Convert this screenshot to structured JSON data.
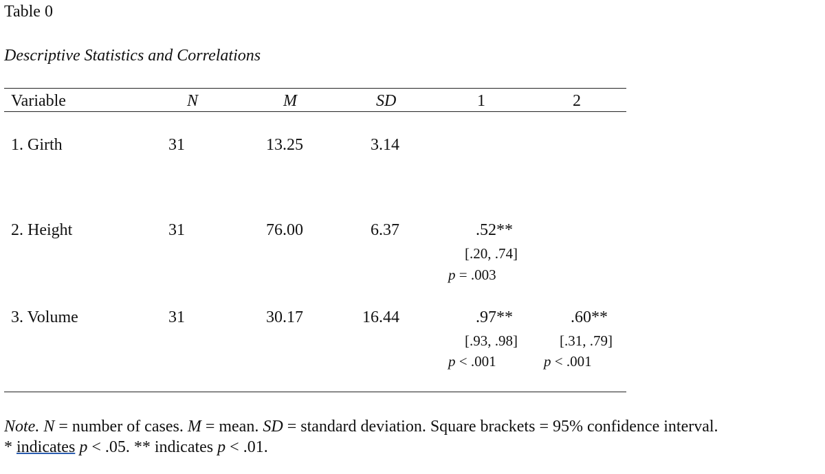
{
  "table": {
    "number": "Table 0",
    "title": "Descriptive Statistics and Correlations",
    "headers": {
      "variable": "Variable",
      "n": "N",
      "m": "M",
      "sd": "SD",
      "c1": "1",
      "c2": "2"
    },
    "rows": [
      {
        "variable": "1. Girth",
        "n": "31",
        "m": "13.25",
        "sd": "3.14"
      },
      {
        "variable": "2. Height",
        "n": "31",
        "m": "76.00",
        "sd": "6.37",
        "c1": {
          "r": ".52**",
          "ci": "[.20, .74]",
          "p_label": "p",
          "p_rest": " = .003"
        }
      },
      {
        "variable": "3. Volume",
        "n": "31",
        "m": "30.17",
        "sd": "16.44",
        "c1": {
          "r": ".97**",
          "ci": "[.93, .98]",
          "p_label": "p",
          "p_rest": " < .001"
        },
        "c2": {
          "r": ".60**",
          "ci": "[.31, .79]",
          "p_label": "p",
          "p_rest": " < .001"
        }
      }
    ]
  },
  "note": {
    "line1": {
      "note_label": "Note.",
      "n_sym": "N",
      "n_text": " = number of cases. ",
      "m_sym": "M",
      "m_text": " = mean. ",
      "sd_sym": "SD",
      "sd_text": " = standard deviation. Square brackets = 95% confidence interval."
    },
    "line2": {
      "star1": "* ",
      "indicates1": "indicates",
      "p1_sym": "p",
      "p1_text": " < .05. ** indicates ",
      "p2_sym": "p",
      "p2_text": " < .01."
    }
  }
}
